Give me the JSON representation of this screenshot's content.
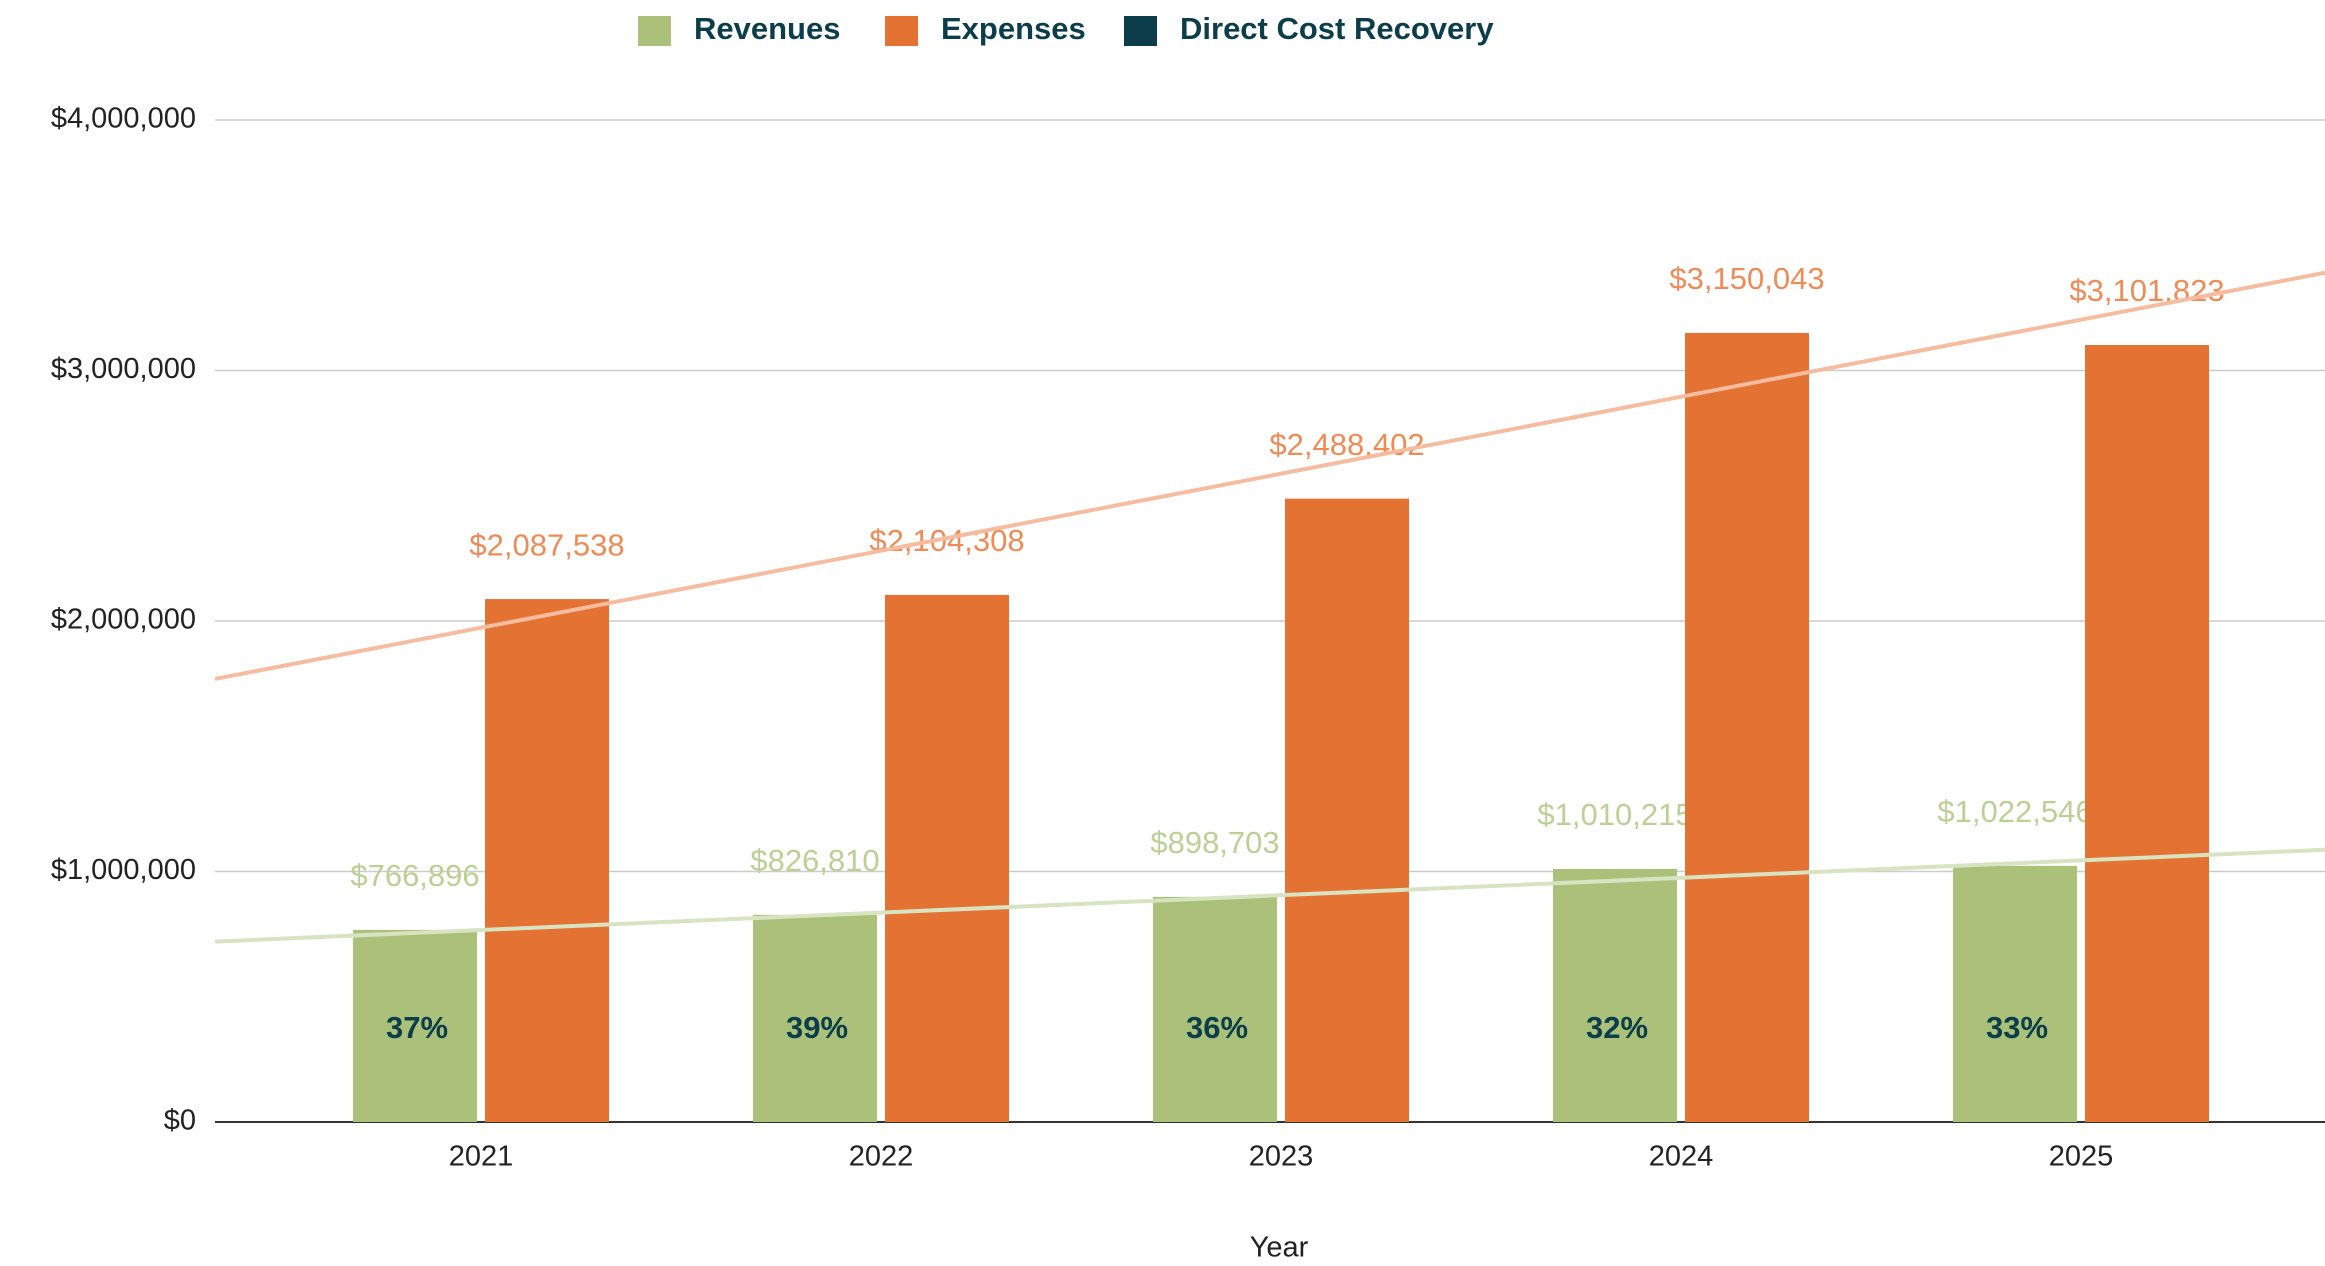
{
  "chart_data": {
    "type": "bar",
    "x_label": "Year",
    "categories": [
      "2021",
      "2022",
      "2023",
      "2024",
      "2025"
    ],
    "series": [
      {
        "name": "Revenues",
        "color": "#abc17a",
        "trend_color": "#d8e3c2",
        "values": [
          766896,
          826810,
          898703,
          1010215,
          1022546
        ],
        "value_labels": [
          "$766,896",
          "$826,810",
          "$898,703",
          "$1,010,215",
          "$1,022,546"
        ]
      },
      {
        "name": "Expenses",
        "color": "#e37233",
        "trend_color": "#f5bca0",
        "values": [
          2087538,
          2104308,
          2488402,
          3150043,
          3101823
        ],
        "value_labels": [
          "$2,087,538",
          "$2,104,308",
          "$2,488,402",
          "$3,150,043",
          "$3,101,823"
        ]
      },
      {
        "name": "Direct Cost Recovery",
        "color": "#0b3d4a",
        "values": [
          37,
          39,
          36,
          32,
          33
        ],
        "value_labels": [
          "37%",
          "39%",
          "36%",
          "32%",
          "33%"
        ]
      }
    ],
    "ylim": [
      0,
      4000000
    ],
    "yticks": [
      {
        "value": 0,
        "label": "$0"
      },
      {
        "value": 1000000,
        "label": "$1,000,000"
      },
      {
        "value": 2000000,
        "label": "$2,000,000"
      },
      {
        "value": 3000000,
        "label": "$3,000,000"
      },
      {
        "value": 4000000,
        "label": "$4,000,000"
      }
    ],
    "grid": true,
    "trendline": true
  }
}
